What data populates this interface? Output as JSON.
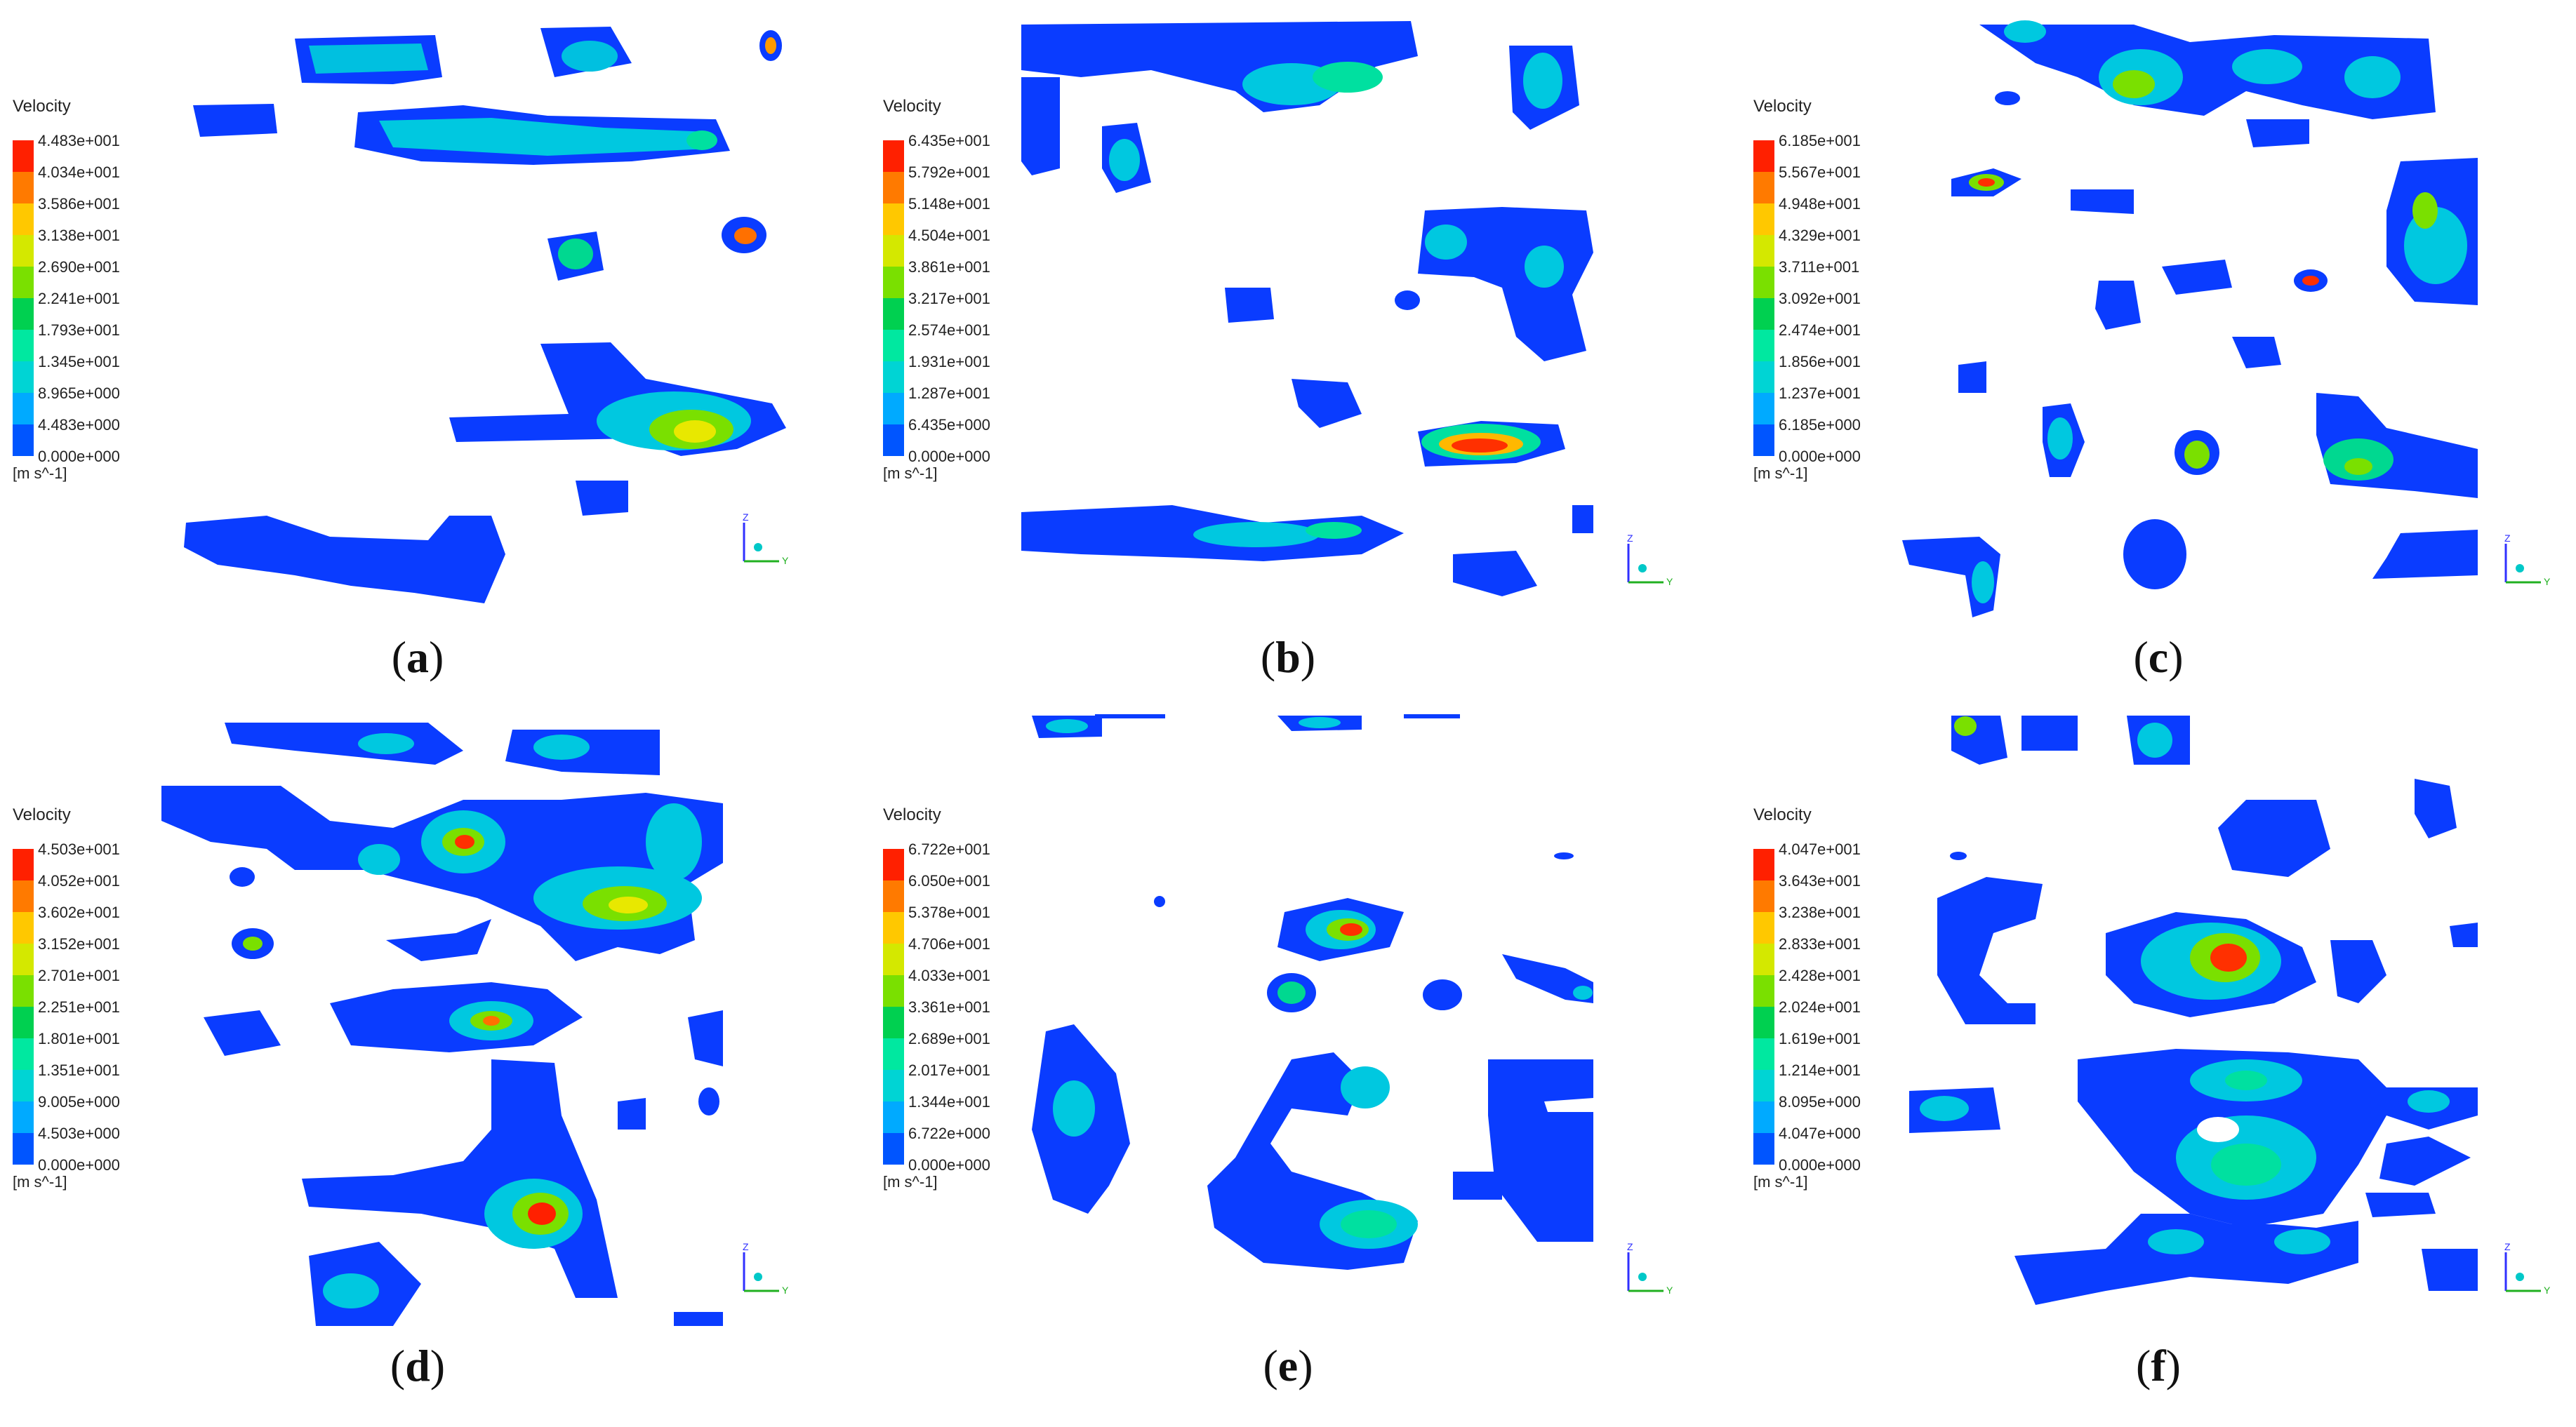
{
  "legend_title": "Velocity",
  "unit": "[m s^-1]",
  "axis_labels": {
    "z": "Z",
    "y": "Y"
  },
  "colormap": [
    "#0000ff",
    "#0055ff",
    "#00aaff",
    "#00d4d4",
    "#00e8a0",
    "#00d050",
    "#7ae000",
    "#d4e800",
    "#ffc800",
    "#ff7a00",
    "#ff2000"
  ],
  "panels": [
    {
      "label": "a",
      "ticks": [
        "4.483e+001",
        "4.034e+001",
        "3.586e+001",
        "3.138e+001",
        "2.690e+001",
        "2.241e+001",
        "1.793e+001",
        "1.345e+001",
        "8.965e+000",
        "4.483e+000",
        "0.000e+000"
      ]
    },
    {
      "label": "b",
      "ticks": [
        "6.435e+001",
        "5.792e+001",
        "5.148e+001",
        "4.504e+001",
        "3.861e+001",
        "3.217e+001",
        "2.574e+001",
        "1.931e+001",
        "1.287e+001",
        "6.435e+000",
        "0.000e+000"
      ]
    },
    {
      "label": "c",
      "ticks": [
        "6.185e+001",
        "5.567e+001",
        "4.948e+001",
        "4.329e+001",
        "3.711e+001",
        "3.092e+001",
        "2.474e+001",
        "1.856e+001",
        "1.237e+001",
        "6.185e+000",
        "0.000e+000"
      ]
    },
    {
      "label": "d",
      "ticks": [
        "4.503e+001",
        "4.052e+001",
        "3.602e+001",
        "3.152e+001",
        "2.701e+001",
        "2.251e+001",
        "1.801e+001",
        "1.351e+001",
        "9.005e+000",
        "4.503e+000",
        "0.000e+000"
      ]
    },
    {
      "label": "e",
      "ticks": [
        "6.722e+001",
        "6.050e+001",
        "5.378e+001",
        "4.706e+001",
        "4.033e+001",
        "3.361e+001",
        "2.689e+001",
        "2.017e+001",
        "1.344e+001",
        "6.722e+000",
        "0.000e+000"
      ]
    },
    {
      "label": "f",
      "ticks": [
        "4.047e+001",
        "3.643e+001",
        "3.238e+001",
        "2.833e+001",
        "2.428e+001",
        "2.024e+001",
        "1.619e+001",
        "1.214e+001",
        "8.095e+000",
        "4.047e+000",
        "0.000e+000"
      ]
    }
  ]
}
